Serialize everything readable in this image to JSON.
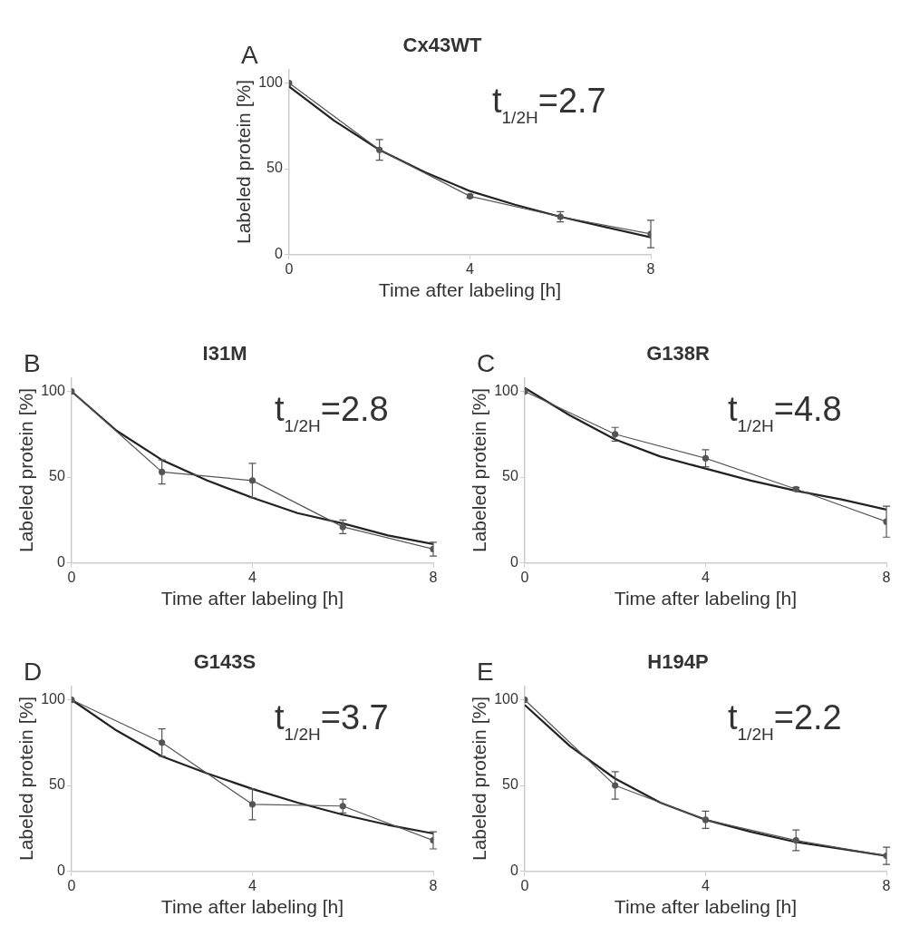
{
  "chart_data": [
    {
      "type": "line",
      "title": "Cx43WT",
      "xlabel": "Time after labeling [h]",
      "ylabel": "Labeled protein [%]",
      "annotations": [
        "A",
        "t$_{1/2H}$=2.7"
      ],
      "x": [
        0,
        2,
        4,
        6,
        8
      ],
      "xlim": [
        0,
        8
      ],
      "ylim": [
        0,
        108
      ],
      "xticks": [
        0,
        4,
        8
      ],
      "yticks": [
        0,
        50,
        100
      ],
      "grid": false,
      "legend": false,
      "series": [
        {
          "color": "#555555",
          "marker": "circle",
          "values": [
            100,
            61,
            34,
            22,
            12
          ],
          "errors": [
            null,
            6,
            1,
            3,
            8
          ]
        },
        {
          "type": "line",
          "color": "#222222",
          "marker": "none",
          "x": [
            0,
            1,
            2,
            3,
            4,
            5,
            6,
            7,
            8
          ],
          "values": [
            98,
            78,
            61,
            48,
            37,
            29,
            22,
            16,
            10
          ]
        }
      ]
    },
    {
      "type": "line",
      "title": "I31M",
      "xlabel": "Time after labeling [h]",
      "ylabel": "Labeled protein [%]",
      "annotations": [
        "B",
        "t$_{1/2H}$=2.8"
      ],
      "x": [
        0,
        2,
        4,
        6,
        8
      ],
      "xlim": [
        0,
        8
      ],
      "ylim": [
        0,
        108
      ],
      "xticks": [
        0,
        4,
        8
      ],
      "yticks": [
        0,
        50,
        100
      ],
      "grid": false,
      "legend": false,
      "series": [
        {
          "color": "#555555",
          "marker": "circle",
          "values": [
            100,
            53,
            48,
            21,
            8
          ],
          "errors": [
            null,
            7,
            10,
            4,
            4
          ]
        },
        {
          "type": "line",
          "color": "#222222",
          "marker": "none",
          "x": [
            0,
            1,
            2,
            3,
            4,
            5,
            6,
            7,
            8
          ],
          "values": [
            100,
            77,
            60,
            48,
            38,
            29,
            23,
            16,
            11
          ]
        }
      ]
    },
    {
      "type": "line",
      "title": "G138R",
      "xlabel": "Time after labeling [h]",
      "ylabel": "Labeled protein [%]",
      "annotations": [
        "C",
        "t$_{1/2H}$=4.8"
      ],
      "x": [
        0,
        2,
        4,
        6,
        8
      ],
      "xlim": [
        0,
        8
      ],
      "ylim": [
        0,
        108
      ],
      "xticks": [
        0,
        4,
        8
      ],
      "yticks": [
        0,
        50,
        100
      ],
      "grid": false,
      "legend": false,
      "series": [
        {
          "color": "#555555",
          "marker": "circle",
          "values": [
            100,
            75,
            61,
            43,
            24
          ],
          "errors": [
            null,
            4,
            5,
            1,
            9
          ]
        },
        {
          "type": "line",
          "color": "#222222",
          "marker": "none",
          "x": [
            0,
            1,
            2,
            3,
            4,
            5,
            6,
            7,
            8
          ],
          "values": [
            102,
            86,
            72,
            62,
            55,
            48,
            42,
            37,
            31
          ]
        }
      ]
    },
    {
      "type": "line",
      "title": "G143S",
      "xlabel": "Time after labeling [h]",
      "ylabel": "Labeled protein [%]",
      "annotations": [
        "D",
        "t$_{1/2H}$=3.7"
      ],
      "x": [
        0,
        2,
        4,
        6,
        8
      ],
      "xlim": [
        0,
        8
      ],
      "ylim": [
        0,
        108
      ],
      "xticks": [
        0,
        4,
        8
      ],
      "yticks": [
        0,
        50,
        100
      ],
      "grid": false,
      "legend": false,
      "series": [
        {
          "color": "#555555",
          "marker": "circle",
          "values": [
            100,
            75,
            39,
            38,
            18
          ],
          "errors": [
            null,
            8,
            9,
            4,
            5
          ]
        },
        {
          "type": "line",
          "color": "#222222",
          "marker": "none",
          "x": [
            0,
            1,
            2,
            3,
            4,
            5,
            6,
            7,
            8
          ],
          "values": [
            100,
            82,
            67,
            57,
            48,
            40,
            33,
            27,
            22
          ]
        }
      ]
    },
    {
      "type": "line",
      "title": "H194P",
      "xlabel": "Time after labeling [h]",
      "ylabel": "Labeled protein [%]",
      "annotations": [
        "E",
        "t$_{1/2H}$=2.2"
      ],
      "x": [
        0,
        2,
        4,
        6,
        8
      ],
      "xlim": [
        0,
        8
      ],
      "ylim": [
        0,
        108
      ],
      "xticks": [
        0,
        4,
        8
      ],
      "yticks": [
        0,
        50,
        100
      ],
      "grid": false,
      "legend": false,
      "series": [
        {
          "color": "#555555",
          "marker": "circle",
          "values": [
            100,
            50,
            30,
            18,
            9
          ],
          "errors": [
            null,
            8,
            5,
            6,
            5
          ]
        },
        {
          "type": "line",
          "color": "#222222",
          "marker": "none",
          "x": [
            0,
            1,
            2,
            3,
            4,
            5,
            6,
            7,
            8
          ],
          "values": [
            97,
            73,
            54,
            40,
            30,
            23,
            17,
            13,
            9
          ]
        }
      ]
    }
  ]
}
